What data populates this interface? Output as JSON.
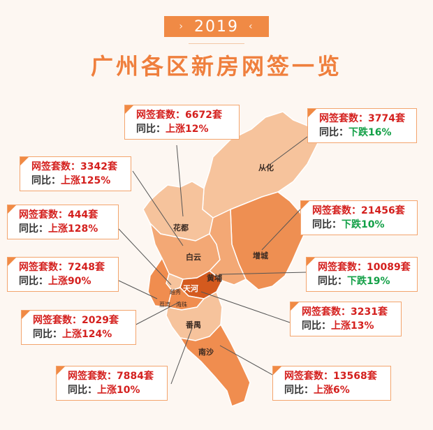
{
  "header": {
    "year": "2019",
    "title": "广州各区新房网签一览"
  },
  "labels": {
    "count_prefix": "网签套数：",
    "yoy_prefix": "同比："
  },
  "colors": {
    "accent": "#f08a45",
    "up": "#d4201e",
    "down": "#13a047"
  },
  "districts": [
    {
      "id": "conghua",
      "name": "从化",
      "count": "3774套",
      "yoy": "下跌16%",
      "trend": "down"
    },
    {
      "id": "huadu",
      "name": "花都",
      "count": "6672套",
      "yoy": "上涨12%",
      "trend": "up"
    },
    {
      "id": "baiyun",
      "name": "白云",
      "count": "3342套",
      "yoy": "上涨125%",
      "trend": "up"
    },
    {
      "id": "zengcheng",
      "name": "增城",
      "count": "21456套",
      "yoy": "下跌10%",
      "trend": "down"
    },
    {
      "id": "yuexiu",
      "name": "越秀",
      "count": "444套",
      "yoy": "上涨128%",
      "trend": "up"
    },
    {
      "id": "huangpu",
      "name": "黄埔",
      "count": "10089套",
      "yoy": "下跌19%",
      "trend": "down"
    },
    {
      "id": "liwan",
      "name": "荔湾",
      "count": "7248套",
      "yoy": "上涨90%",
      "trend": "up"
    },
    {
      "id": "tianhe",
      "name": "天河",
      "count": "3231套",
      "yoy": "上涨13%",
      "trend": "up"
    },
    {
      "id": "haizhu",
      "name": "海珠",
      "count": "2029套",
      "yoy": "上涨124%",
      "trend": "up"
    },
    {
      "id": "panyu",
      "name": "番禺",
      "count": "7884套",
      "yoy": "上涨10%",
      "trend": "up"
    },
    {
      "id": "nansha",
      "name": "南沙",
      "count": "13568套",
      "yoy": "上涨6%",
      "trend": "up"
    }
  ]
}
